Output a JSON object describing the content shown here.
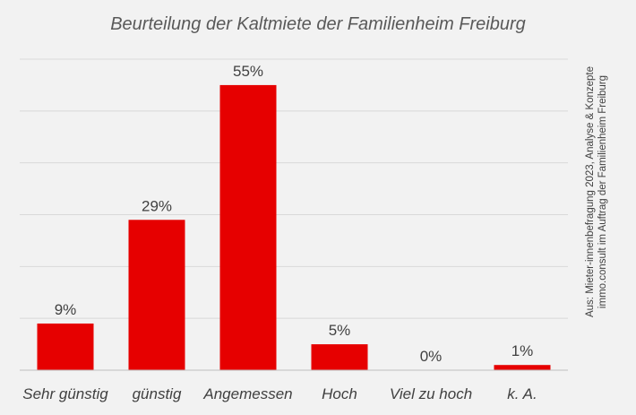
{
  "chart_data": {
    "type": "bar",
    "title": "Beurteilung der Kaltmiete der Familienheim Freiburg",
    "categories": [
      "Sehr günstig",
      "günstig",
      "Angemessen",
      "Hoch",
      "Viel zu hoch",
      "k. A."
    ],
    "values": [
      9,
      29,
      55,
      5,
      0,
      1
    ],
    "value_labels": [
      "9%",
      "29%",
      "55%",
      "5%",
      "0%",
      "1%"
    ],
    "ylim": [
      0,
      60
    ],
    "y_gridlines": [
      0,
      10,
      20,
      30,
      40,
      50,
      60
    ],
    "grid": true,
    "legend": "none",
    "xlabel": "",
    "ylabel": ""
  },
  "source_note": {
    "line1": "Aus: Mieter-innenbefragung 2023, Analyse & Konzepte",
    "line2": "immo.consult im Auftrag der Familienheim Freiburg"
  },
  "colors": {
    "bar": "#e60000",
    "background": "#f2f2f2",
    "grid": "#d9d9d9",
    "axis": "#bfbfbf",
    "text": "#404040",
    "title": "#595959"
  }
}
